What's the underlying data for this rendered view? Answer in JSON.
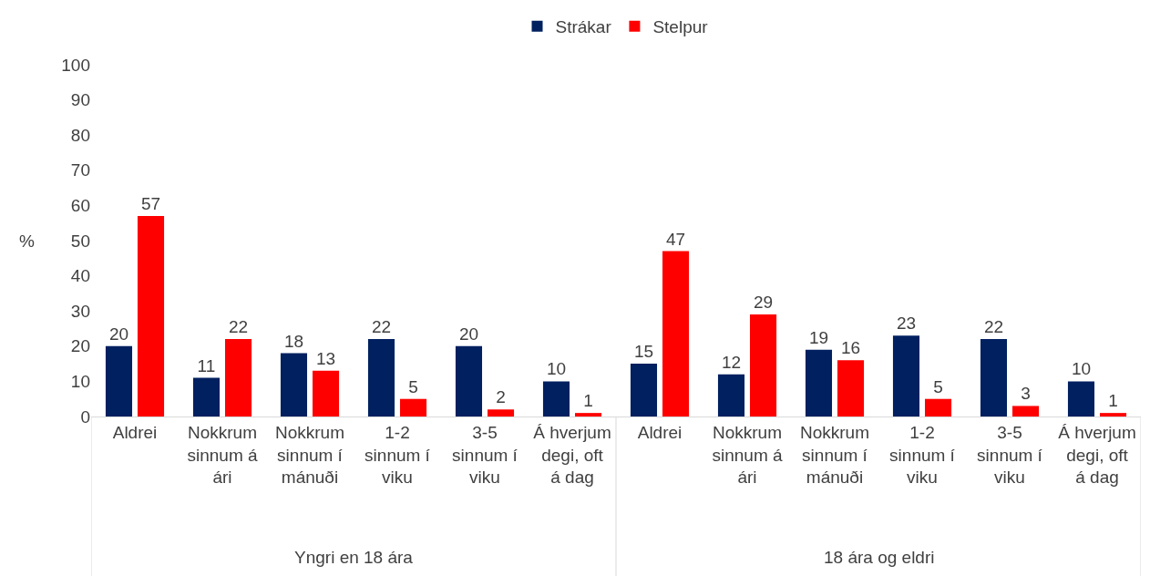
{
  "chart_data": {
    "type": "bar",
    "ylabel": "%",
    "categories": [
      "Aldrei",
      "Nokkrum sinnum á ári",
      "Nokkrum sinnum í mánuði",
      "1-2 sinnum í viku",
      "3-5 sinnum í viku",
      "Á hverjum degi, oft á dag",
      "Aldrei",
      "Nokkrum sinnum á ári",
      "Nokkrum sinnum í mánuði",
      "1-2 sinnum í viku",
      "3-5 sinnum í viku",
      "Á hverjum degi, oft á dag"
    ],
    "series": [
      {
        "name": "Strákar",
        "color": "#002060",
        "values": [
          20,
          11,
          18,
          22,
          20,
          10,
          15,
          12,
          19,
          23,
          22,
          10
        ]
      },
      {
        "name": "Stelpur",
        "color": "#ff0000",
        "values": [
          57,
          22,
          13,
          5,
          2,
          1,
          47,
          29,
          16,
          5,
          3,
          1
        ]
      }
    ],
    "annotations": [
      "Yngri en 18 ára",
      "18 ára og eldri"
    ],
    "ylim": [
      0,
      100
    ],
    "yticks": [
      0,
      10,
      20,
      30,
      40,
      50,
      60,
      70,
      80,
      90,
      100
    ],
    "data_labels": true,
    "grid": false,
    "legend": "top"
  }
}
